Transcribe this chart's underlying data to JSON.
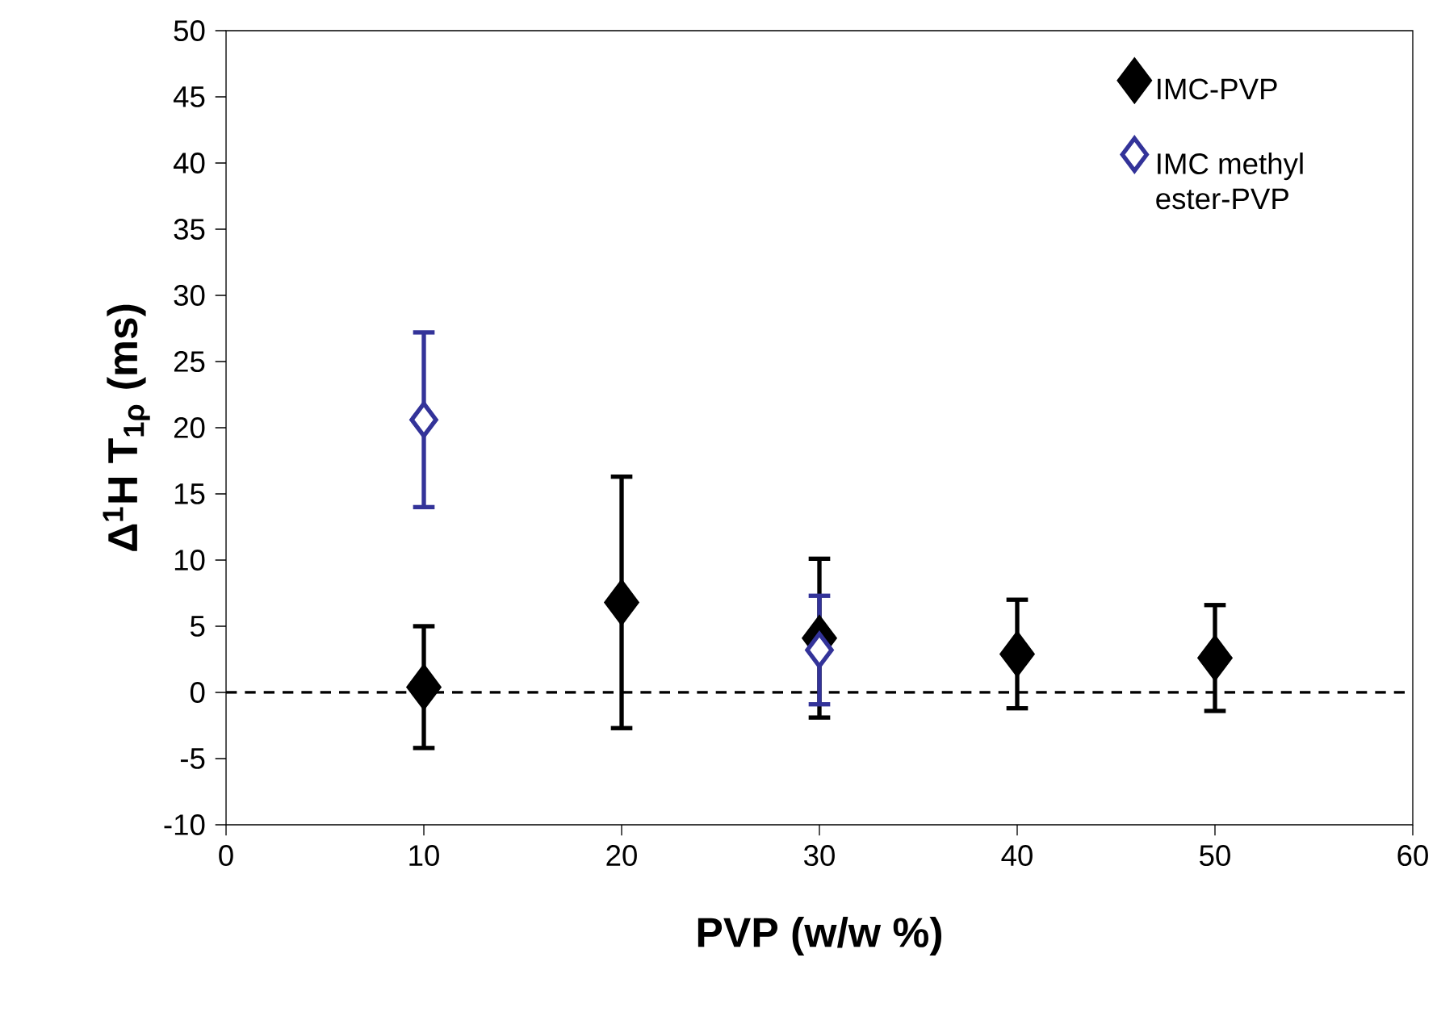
{
  "chart_data": {
    "type": "scatter",
    "xlabel": "PVP (w/w %)",
    "ylabel": "Δ$^{1}$H T$_{1ρ}$ (ms)",
    "xlim": [
      0,
      60
    ],
    "xticks": [
      0,
      10,
      20,
      30,
      40,
      50,
      60
    ],
    "ylim": [
      -10,
      50
    ],
    "yticks": [
      -10,
      -5,
      0,
      5,
      10,
      15,
      20,
      25,
      30,
      35,
      40,
      45,
      50
    ],
    "marker": "diamond",
    "legend": "top right",
    "grid": false,
    "ref_lines": [
      {
        "axis": "y",
        "value": 0,
        "color": "#000000",
        "line_style": "dashed"
      }
    ],
    "series": [
      {
        "name": "IMC-PVP",
        "color": "#000000",
        "x": [
          10,
          20,
          30,
          40,
          50
        ],
        "values": [
          0.4,
          6.8,
          4.1,
          2.9,
          2.6
        ],
        "errors": [
          4.6,
          9.5,
          6.0,
          4.1,
          4.0
        ]
      },
      {
        "name": "IMC methyl ester-PVP",
        "color": "#333399",
        "x": [
          10,
          30
        ],
        "values": [
          20.6,
          3.2
        ],
        "errors": [
          6.6,
          4.1
        ]
      }
    ]
  }
}
